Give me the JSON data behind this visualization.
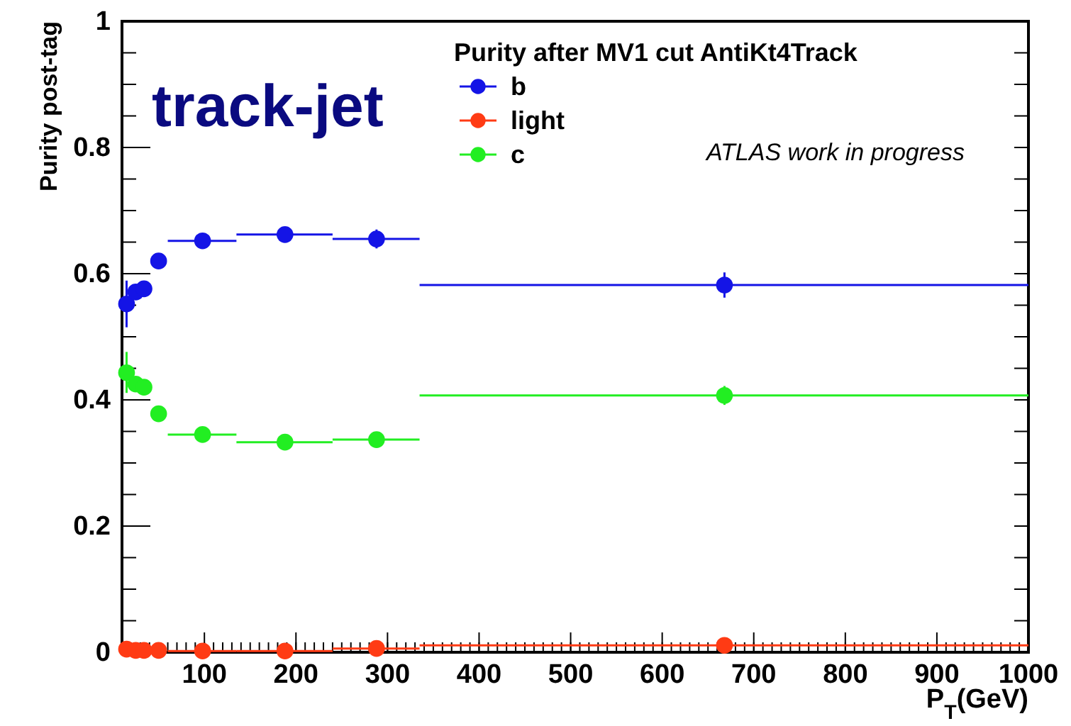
{
  "chart_data": {
    "type": "scatter",
    "xlabel": "P$_{T}$(GeV)",
    "ylabel": "Purity post-tag",
    "legend_title": "Purity after MV1 cut AntiKt4Track",
    "annotations": [
      "track-jet",
      "ATLAS work in progress"
    ],
    "x": [
      15,
      25,
      34,
      50,
      98,
      188,
      288,
      668
    ],
    "xlim": [
      10,
      1000
    ],
    "xticks": [
      100,
      200,
      300,
      400,
      500,
      600,
      700,
      800,
      900,
      1000
    ],
    "ylim": [
      0,
      1
    ],
    "yticks": [
      0,
      0.2,
      0.4,
      0.6,
      0.8,
      1
    ],
    "grid": false,
    "legend": "top",
    "marker": "circle",
    "series": [
      {
        "name": "b",
        "color": "#1414e6",
        "values": [
          0.552,
          0.571,
          0.576,
          0.62,
          0.652,
          0.662,
          0.655,
          0.582
        ],
        "errors": [
          [
            0.515,
            0.589
          ],
          0.012,
          0.01,
          0.006,
          0.006,
          0.006,
          0.015,
          0.02
        ],
        "xerrors": [
          null,
          null,
          null,
          null,
          [
            60,
            135
          ],
          [
            135,
            240
          ],
          [
            240,
            335
          ],
          [
            335,
            1000
          ]
        ]
      },
      {
        "name": "light",
        "color": "#ff3b14",
        "values": [
          0.005,
          0.003,
          0.003,
          0.003,
          0.002,
          0.002,
          0.006,
          0.011
        ],
        "xerrors": [
          null,
          null,
          null,
          null,
          [
            60,
            135
          ],
          [
            135,
            240
          ],
          [
            240,
            335
          ],
          [
            335,
            1000
          ]
        ]
      },
      {
        "name": "c",
        "color": "#22ee22",
        "values": [
          0.443,
          0.425,
          0.42,
          0.378,
          0.345,
          0.333,
          0.337,
          0.407
        ],
        "errors": [
          [
            0.411,
            0.476
          ],
          0.012,
          0.01,
          0.006,
          0.006,
          0.006,
          0.008,
          0.015
        ],
        "xerrors": [
          null,
          null,
          null,
          null,
          [
            60,
            135
          ],
          [
            135,
            240
          ],
          [
            240,
            335
          ],
          [
            335,
            1000
          ]
        ]
      }
    ]
  }
}
